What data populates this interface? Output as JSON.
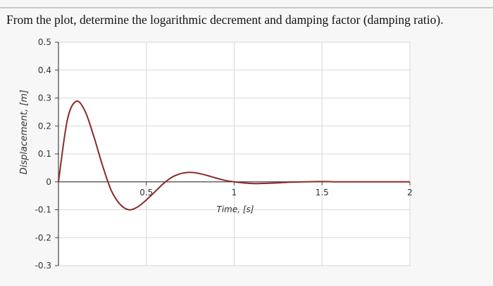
{
  "question": "From the plot, determine the logarithmic decrement and damping factor (damping ratio).",
  "chart_data": {
    "type": "line",
    "title": "",
    "xlabel": "Time, [s]",
    "ylabel": "Displacement, [m]",
    "xlim": [
      0,
      2
    ],
    "ylim": [
      -0.3,
      0.5
    ],
    "x_ticks": [
      0.5,
      1,
      1.5,
      2
    ],
    "x_tick_labels": [
      "0.5",
      "1",
      "1.5",
      "2"
    ],
    "y_ticks": [
      0.5,
      0.4,
      0.3,
      0.2,
      0.1,
      0,
      -0.1,
      -0.2,
      -0.3
    ],
    "y_tick_labels": [
      "0.5",
      "0.4",
      "0.3",
      "0.2",
      "0.1",
      "0",
      "-0.1",
      "-0.2",
      "-0.3"
    ],
    "grid": true,
    "line_color": "#8b2a2a",
    "series": [
      {
        "x": [
          0,
          0.05,
          0.1,
          0.15,
          0.2,
          0.25,
          0.3,
          0.35,
          0.4,
          0.45,
          0.5,
          0.55,
          0.6,
          0.65,
          0.7,
          0.75,
          0.8,
          0.85,
          0.9,
          0.95,
          1.0,
          1.1,
          1.2,
          1.3,
          1.4,
          1.5,
          1.6,
          1.7,
          1.8,
          1.9,
          2.0
        ],
        "y": [
          0,
          0.22,
          0.288,
          0.255,
          0.165,
          0.06,
          -0.03,
          -0.08,
          -0.1,
          -0.09,
          -0.065,
          -0.035,
          -0.005,
          0.018,
          0.03,
          0.034,
          0.03,
          0.022,
          0.013,
          0.005,
          0.0,
          -0.006,
          -0.005,
          -0.002,
          0.0,
          0.001,
          0.0,
          0.0,
          0.0,
          0.0,
          0.0
        ]
      }
    ]
  }
}
